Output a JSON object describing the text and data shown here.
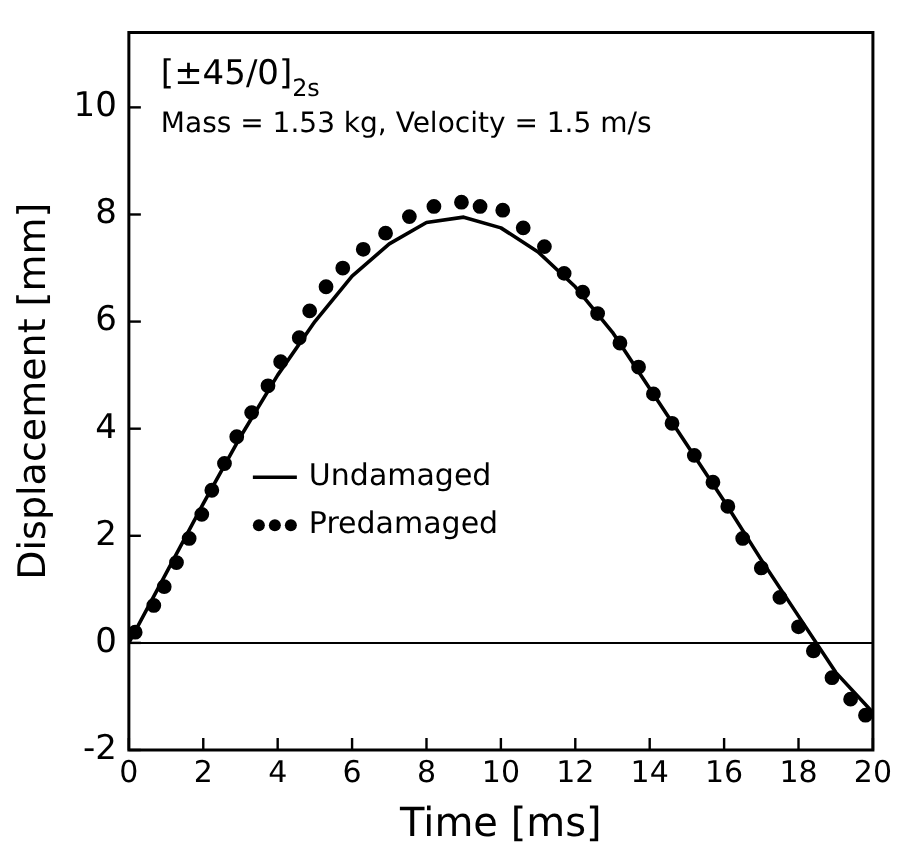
{
  "chart_data": {
    "type": "line",
    "xlabel": "Time [ms]",
    "ylabel": "Displacement [mm]",
    "annotations": [
      "[±45/0]$_{2s}$",
      "Mass = 1.53 kg, Velocity = 1.5 m/s"
    ],
    "xlim": [
      0,
      20
    ],
    "xticks": [
      0,
      2,
      4,
      6,
      8,
      10,
      12,
      14,
      16,
      18,
      20
    ],
    "ylim": [
      -2,
      11.4
    ],
    "yticks": [
      -2,
      0,
      2,
      4,
      6,
      8,
      10
    ],
    "grid": false,
    "legend": "left",
    "ref_lines": [
      {
        "axis": "y",
        "value": 0,
        "color": "#000000"
      }
    ],
    "series": [
      {
        "name": "Undamaged",
        "type": "line",
        "color": "#000000",
        "marker": "none",
        "line_style": "solid",
        "x": [
          0,
          1,
          2,
          3,
          4,
          5,
          6,
          7,
          8,
          9,
          10,
          11,
          12,
          13,
          14,
          15,
          16,
          17,
          18,
          19,
          20
        ],
        "values": [
          0,
          1.3,
          2.6,
          3.85,
          5.0,
          6.0,
          6.85,
          7.45,
          7.85,
          7.95,
          7.75,
          7.3,
          6.65,
          5.8,
          4.75,
          3.7,
          2.65,
          1.55,
          0.5,
          -0.55,
          -1.3
        ]
      },
      {
        "name": "Predamaged",
        "type": "scatter",
        "color": "#000000",
        "marker": "circle",
        "x": [
          0.17,
          0.67,
          0.95,
          1.28,
          1.62,
          1.96,
          2.23,
          2.57,
          2.9,
          3.3,
          3.74,
          4.08,
          4.58,
          4.86,
          5.3,
          5.75,
          6.3,
          6.9,
          7.54,
          8.2,
          8.94,
          9.44,
          10.05,
          10.6,
          11.17,
          11.7,
          12.2,
          12.6,
          13.2,
          13.7,
          14.1,
          14.6,
          15.2,
          15.7,
          16.1,
          16.5,
          17.0,
          17.5,
          18.0,
          18.4,
          18.9,
          19.4,
          19.8
        ],
        "values": [
          0.2,
          0.7,
          1.05,
          1.5,
          1.95,
          2.4,
          2.85,
          3.35,
          3.85,
          4.3,
          4.8,
          5.25,
          5.7,
          6.2,
          6.65,
          7.0,
          7.35,
          7.65,
          7.96,
          8.15,
          8.23,
          8.15,
          8.08,
          7.75,
          7.4,
          6.9,
          6.55,
          6.15,
          5.6,
          5.15,
          4.65,
          4.1,
          3.5,
          3.0,
          2.55,
          1.95,
          1.4,
          0.85,
          0.3,
          -0.15,
          -0.65,
          -1.05,
          -1.35
        ]
      }
    ]
  }
}
